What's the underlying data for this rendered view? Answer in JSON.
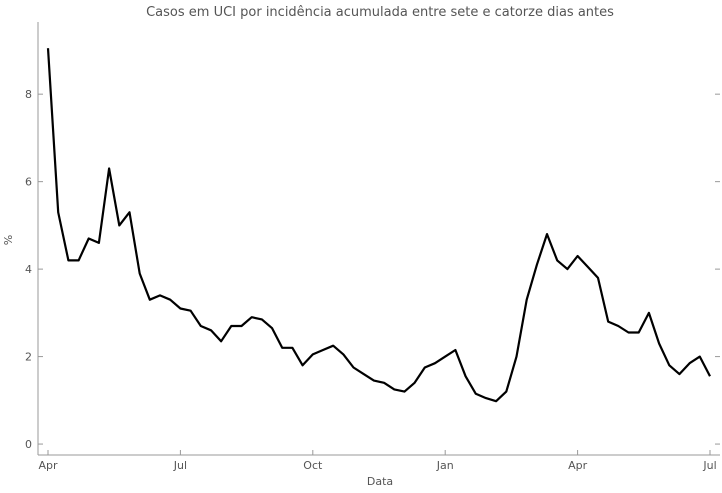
{
  "chart_data": {
    "type": "line",
    "title": "Casos em UCI por incidência acumulada entre sete e catorze dias antes",
    "x_label": "Data",
    "y_label": "%",
    "categories": [
      "Apr",
      null,
      null,
      null,
      null,
      null,
      null,
      null,
      null,
      null,
      null,
      null,
      null,
      "Jul",
      null,
      null,
      null,
      null,
      null,
      null,
      null,
      null,
      null,
      null,
      null,
      null,
      "Oct",
      null,
      null,
      null,
      null,
      null,
      null,
      null,
      null,
      null,
      null,
      null,
      null,
      "Jan",
      null,
      null,
      null,
      null,
      null,
      null,
      null,
      null,
      null,
      null,
      null,
      null,
      "Apr",
      null,
      null,
      null,
      null,
      null,
      null,
      null,
      null,
      null,
      null,
      null,
      null,
      "Jul"
    ],
    "series": [
      {
        "name": "%",
        "color": "#000000",
        "values": [
          9.05,
          5.3,
          4.2,
          4.2,
          4.7,
          4.6,
          6.3,
          5.0,
          5.3,
          3.9,
          3.3,
          3.4,
          3.3,
          3.1,
          3.05,
          2.7,
          2.6,
          2.35,
          2.7,
          2.7,
          2.9,
          2.85,
          2.65,
          2.2,
          2.2,
          1.8,
          2.05,
          2.15,
          2.25,
          2.05,
          1.75,
          1.6,
          1.45,
          1.4,
          1.25,
          1.2,
          1.4,
          1.75,
          1.85,
          2.0,
          2.15,
          1.55,
          1.15,
          1.05,
          0.98,
          1.2,
          2.0,
          3.3,
          4.1,
          4.8,
          4.2,
          4.0,
          4.3,
          4.05,
          3.8,
          2.8,
          2.7,
          2.55,
          2.55,
          3.0,
          2.3,
          1.8,
          1.6,
          1.85,
          2.0,
          1.55
        ]
      }
    ],
    "ylim": [
      -0.25,
      9.65
    ],
    "yticks": [
      0,
      2,
      4,
      6,
      8
    ]
  }
}
